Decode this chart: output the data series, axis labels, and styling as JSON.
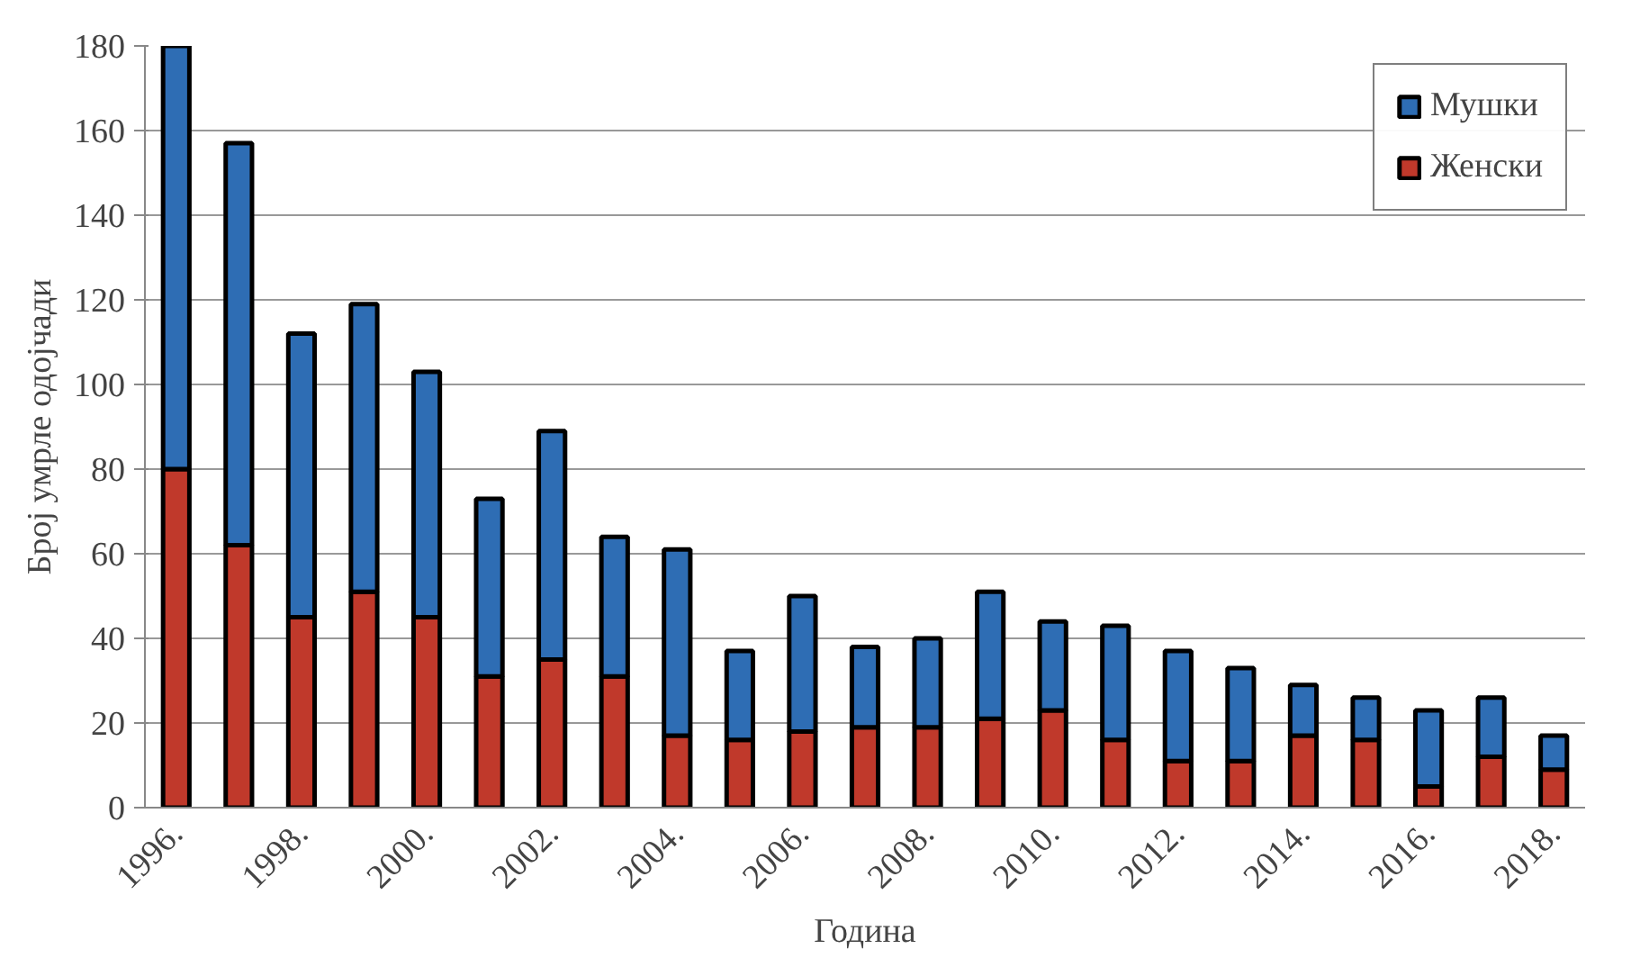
{
  "chart_data": {
    "type": "bar",
    "stacked": true,
    "xlabel": "Година",
    "ylabel": "Број умрле одојчади",
    "categories": [
      "1996.",
      null,
      "1998.",
      null,
      "2000.",
      null,
      "2002.",
      null,
      "2004.",
      null,
      "2006.",
      null,
      "2008.",
      null,
      "2010.",
      null,
      "2012.",
      null,
      "2014.",
      null,
      "2016.",
      null,
      "2018."
    ],
    "series": [
      {
        "name": "Женски",
        "color": "#c0392b",
        "values": [
          80,
          62,
          45,
          51,
          45,
          31,
          35,
          31,
          17,
          16,
          18,
          19,
          19,
          21,
          23,
          16,
          11,
          11,
          17,
          16,
          5,
          12,
          9
        ]
      },
      {
        "name": "Мушки",
        "color": "#2e6db4",
        "values": [
          100,
          95,
          67,
          68,
          58,
          42,
          54,
          33,
          44,
          21,
          32,
          19,
          21,
          30,
          21,
          27,
          26,
          22,
          12,
          10,
          18,
          14,
          8
        ]
      }
    ],
    "ylim": [
      0,
      180
    ],
    "yticks": [
      0,
      20,
      40,
      60,
      80,
      100,
      120,
      140,
      160,
      180
    ],
    "grid": "y",
    "legend": "top right"
  }
}
